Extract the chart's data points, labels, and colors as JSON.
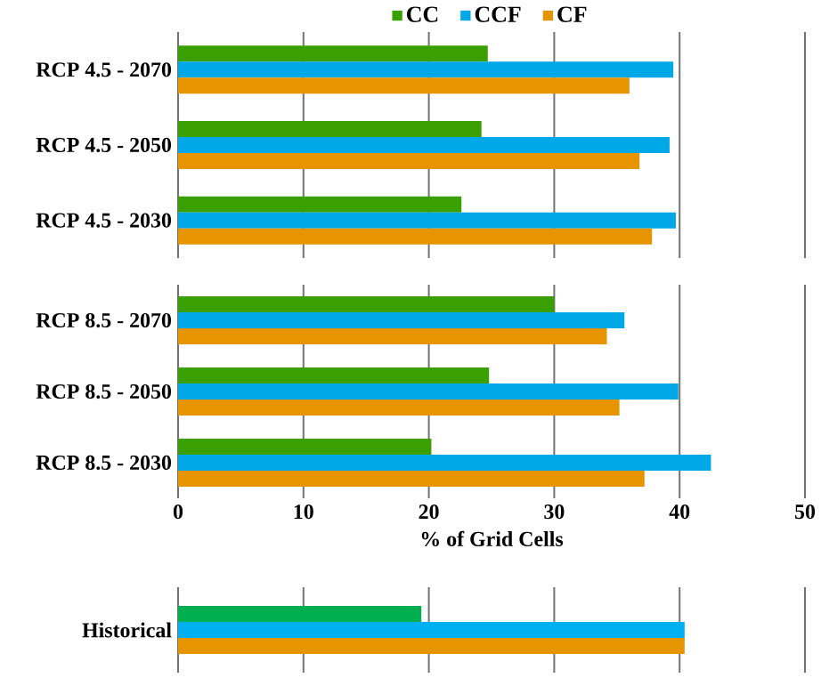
{
  "chart_data": [
    {
      "type": "bar",
      "orientation": "horizontal",
      "categories": [
        "RCP 4.5 - 2070",
        "RCP 4.5 - 2050",
        "RCP 4.5 - 2030"
      ],
      "series": [
        {
          "name": "CC",
          "color": "#3a9f00",
          "values": [
            24.7,
            24.2,
            22.6
          ]
        },
        {
          "name": "CCF",
          "color": "#00a8e8",
          "values": [
            39.5,
            39.2,
            39.7
          ]
        },
        {
          "name": "CF",
          "color": "#e69500",
          "values": [
            36.0,
            36.8,
            37.8
          ]
        }
      ],
      "xlim": [
        0,
        50
      ],
      "xticks": [
        0,
        10,
        20,
        30,
        40,
        50
      ],
      "grid": "x",
      "legend": "top",
      "tick_labels": "y"
    },
    {
      "type": "bar",
      "orientation": "horizontal",
      "categories": [
        "RCP 8.5 - 2070",
        "RCP 8.5 - 2050",
        "RCP 8.5 - 2030"
      ],
      "series": [
        {
          "color": "#3a9f00",
          "values": [
            30.0,
            24.8,
            20.2
          ]
        },
        {
          "color": "#00a8e8",
          "values": [
            35.6,
            39.9,
            42.5
          ]
        },
        {
          "color": "#e69500",
          "values": [
            34.2,
            35.2,
            37.2
          ]
        }
      ],
      "xlim": [
        0,
        50
      ],
      "xticks": [
        0,
        10,
        20,
        30,
        40,
        50
      ],
      "xlabel": "% of Grid Cells",
      "grid": "x"
    },
    {
      "type": "bar",
      "orientation": "horizontal",
      "categories": [
        "Historical"
      ],
      "series": [
        {
          "color": "#00b050",
          "values": [
            19.4
          ]
        },
        {
          "color": "#00b0f0",
          "values": [
            40.4
          ]
        },
        {
          "color": "#e69500",
          "values": [
            40.4
          ]
        }
      ],
      "xlim": [
        0,
        50
      ],
      "xticks": [
        0,
        10,
        20,
        30,
        40,
        50
      ],
      "grid": "x",
      "tick_labels": "y"
    }
  ]
}
